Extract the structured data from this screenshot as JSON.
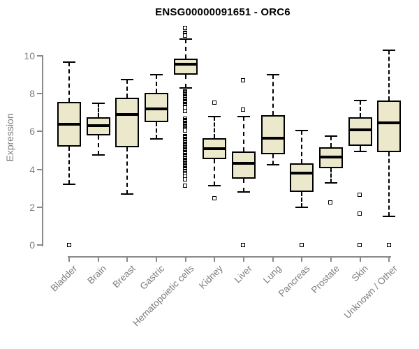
{
  "chart_data": {
    "type": "boxplot",
    "title": "ENSG00000091651 - ORC6",
    "ylabel": "Expression",
    "xlabel": "",
    "yticks": [
      0,
      2,
      4,
      6,
      8,
      10
    ],
    "ylim": [
      0,
      11.6
    ],
    "grid": false,
    "legend": "none",
    "box_fill_color": "#ECE8CB",
    "box_line_color": "#000000",
    "axis_color": "#898989",
    "tick_label_color": "#7d7d7d",
    "categories": [
      "Bladder",
      "Brain",
      "Breast",
      "Gastric",
      "Hematopoietic cells",
      "Kidney",
      "Liver",
      "Lung",
      "Pancreas",
      "Prostate",
      "Skin",
      "Unknown / Other"
    ],
    "boxes": [
      {
        "category": "Bladder",
        "whisker_low": 3.2,
        "q1": 5.2,
        "median": 6.4,
        "q3": 7.55,
        "whisker_high": 9.65,
        "outliers": [
          0
        ]
      },
      {
        "category": "Brain",
        "whisker_low": 4.75,
        "q1": 5.8,
        "median": 6.3,
        "q3": 6.75,
        "whisker_high": 7.5,
        "outliers": []
      },
      {
        "category": "Breast",
        "whisker_low": 2.7,
        "q1": 5.15,
        "median": 6.9,
        "q3": 7.8,
        "whisker_high": 8.75,
        "outliers": []
      },
      {
        "category": "Gastric",
        "whisker_low": 5.6,
        "q1": 6.5,
        "median": 7.2,
        "q3": 8.05,
        "whisker_high": 9.0,
        "outliers": []
      },
      {
        "category": "Hematopoietic cells",
        "whisker_low": 8.3,
        "q1": 9.0,
        "median": 9.55,
        "q3": 9.85,
        "whisker_high": 10.9,
        "outliers": [
          11.45,
          11.2,
          11.15,
          11.1,
          11.05,
          8.1,
          8.05,
          8.0,
          7.95,
          7.9,
          7.85,
          7.8,
          7.75,
          7.7,
          7.65,
          7.6,
          7.55,
          7.5,
          7.45,
          7.4,
          7.35,
          7.3,
          7.25,
          7.05,
          6.65,
          6.6,
          6.55,
          6.5,
          6.45,
          6.4,
          6.35,
          6.3,
          6.25,
          6.2,
          6.15,
          6.1,
          6.05,
          5.75,
          5.7,
          5.65,
          5.6,
          5.55,
          5.5,
          5.45,
          5.4,
          5.35,
          5.3,
          5.25,
          5.2,
          5.15,
          5.1,
          5.05,
          5.0,
          4.95,
          4.9,
          4.85,
          4.8,
          4.75,
          4.7,
          4.65,
          4.6,
          4.55,
          4.5,
          4.45,
          4.4,
          4.35,
          4.3,
          4.25,
          4.2,
          4.15,
          4.1,
          4.05,
          4.0,
          3.95,
          3.9,
          3.85,
          3.8,
          3.7,
          3.6,
          3.45,
          3.1
        ]
      },
      {
        "category": "Kidney",
        "whisker_low": 3.15,
        "q1": 4.55,
        "median": 5.1,
        "q3": 5.65,
        "whisker_high": 6.8,
        "outliers": [
          7.5,
          2.45
        ]
      },
      {
        "category": "Liver",
        "whisker_low": 2.8,
        "q1": 3.5,
        "median": 4.3,
        "q3": 4.95,
        "whisker_high": 6.8,
        "outliers": [
          8.7,
          7.15,
          0
        ]
      },
      {
        "category": "Lung",
        "whisker_low": 4.25,
        "q1": 4.8,
        "median": 5.65,
        "q3": 6.85,
        "whisker_high": 9.0,
        "outliers": []
      },
      {
        "category": "Pancreas",
        "whisker_low": 2.0,
        "q1": 2.8,
        "median": 3.8,
        "q3": 4.3,
        "whisker_high": 6.05,
        "outliers": [
          0
        ]
      },
      {
        "category": "Prostate",
        "whisker_low": 3.3,
        "q1": 4.05,
        "median": 4.65,
        "q3": 5.15,
        "whisker_high": 5.75,
        "outliers": [
          2.25
        ]
      },
      {
        "category": "Skin",
        "whisker_low": 4.95,
        "q1": 5.25,
        "median": 6.1,
        "q3": 6.75,
        "whisker_high": 7.65,
        "outliers": [
          2.65,
          1.65,
          0
        ]
      },
      {
        "category": "Unknown / Other",
        "whisker_low": 1.5,
        "q1": 4.9,
        "median": 6.45,
        "q3": 7.65,
        "whisker_high": 10.3,
        "outliers": [
          0
        ]
      }
    ]
  }
}
